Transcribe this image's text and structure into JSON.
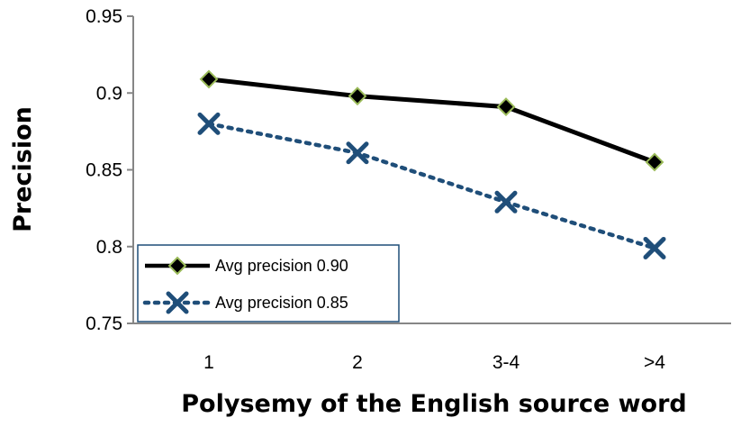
{
  "chart_data": {
    "type": "line",
    "title": "",
    "xlabel": "Polysemy of the English source word",
    "ylabel": "Precision",
    "categories": [
      "1",
      "2",
      "3-4",
      ">4"
    ],
    "ylim": [
      0.75,
      0.95
    ],
    "yticks": [
      "0.75",
      "0.8",
      "0.85",
      "0.9",
      "0.95"
    ],
    "ytick_values": [
      0.75,
      0.8,
      0.85,
      0.9,
      0.95
    ],
    "grid": false,
    "legend_position": "bottom-left",
    "series": [
      {
        "name": "Avg precision 0.90",
        "values": [
          0.909,
          0.898,
          0.891,
          0.855
        ],
        "line_style": "solid",
        "marker": "diamond",
        "color": "#000000",
        "marker_fill": "#000000",
        "marker_edge": "#9bbb59"
      },
      {
        "name": "Avg precision 0.85",
        "values": [
          0.88,
          0.861,
          0.829,
          0.799
        ],
        "line_style": "dotted",
        "marker": "x",
        "color": "#1f4e79",
        "marker_fill": "#1f4e79",
        "marker_edge": "#1f4e79"
      }
    ],
    "colors": {
      "axis": "#868686",
      "legend_border": "#1f4e79"
    }
  }
}
